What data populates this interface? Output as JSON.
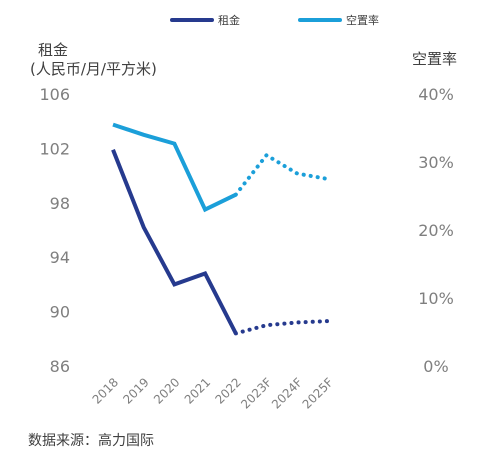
{
  "chart_data": {
    "type": "line",
    "categories": [
      "2018",
      "2019",
      "2020",
      "2021",
      "2022",
      "2023F",
      "2024F",
      "2025F"
    ],
    "series": [
      {
        "name": "租金",
        "axis": "left",
        "color": "#263a8e",
        "values": [
          101.9,
          96.2,
          92.0,
          92.8,
          88.4,
          89.0,
          89.2,
          89.3
        ],
        "actual_through": "2022"
      },
      {
        "name": "空置率",
        "axis": "right",
        "color": "#1b9fd9",
        "values": [
          35.5,
          34.0,
          32.7,
          23.0,
          25.2,
          31.0,
          28.3,
          27.5
        ],
        "actual_through": "2022"
      }
    ],
    "left_axis": {
      "title_line1": "租金",
      "title_line2": "(人民币/月/平方米)",
      "ylim": [
        86,
        106
      ],
      "ticks": [
        "106",
        "102",
        "98",
        "94",
        "90",
        "86"
      ]
    },
    "right_axis": {
      "title": "空置率",
      "ylim": [
        0,
        40
      ],
      "ticks": [
        "40%",
        "30%",
        "20%",
        "10%",
        "0%"
      ]
    },
    "grid": false,
    "legend_position": "top"
  },
  "source": "数据来源：高力国际"
}
